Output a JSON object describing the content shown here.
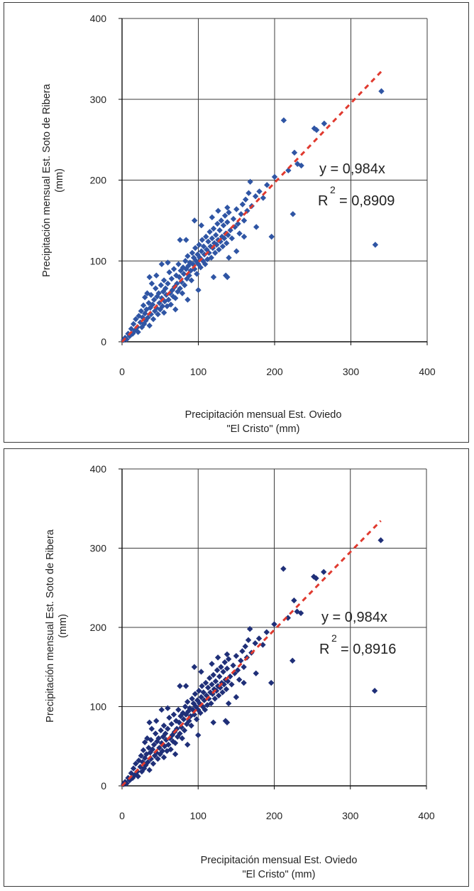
{
  "charts": [
    {
      "point_color": "#2f55a4",
      "trend_color": "#e03a2f",
      "xlabel_line1": "Precipitación mensual Est. Oviedo",
      "xlabel_line2": "\"El Cristo\" (mm)",
      "ylabel_line1": "Precipitación mensual Est. Soto de Ribera",
      "ylabel_line2": "(mm)",
      "equation": "y = 0,984x",
      "r2_label": "R",
      "r2_exp": "2",
      "r2_value": "= 0,8909",
      "xticks": [
        "0",
        "100",
        "200",
        "300",
        "400"
      ],
      "yticks": [
        "0",
        "100",
        "200",
        "300",
        "400"
      ]
    },
    {
      "point_color": "#1f2f78",
      "trend_color": "#e03a2f",
      "xlabel_line1": "Precipitación mensual Est. Oviedo",
      "xlabel_line2": "\"El Cristo\" (mm)",
      "ylabel_line1": "Precipitación mensual Est. Soto de Ribera",
      "ylabel_line2": "(mm)",
      "equation": "y = 0,984x",
      "r2_label": "R",
      "r2_exp": "2",
      "r2_value": "= 0,8916",
      "xticks": [
        "0",
        "100",
        "200",
        "300",
        "400"
      ],
      "yticks": [
        "0",
        "100",
        "200",
        "300",
        "400"
      ]
    }
  ],
  "chart_data": [
    {
      "type": "scatter",
      "xlim": [
        0,
        400
      ],
      "ylim": [
        0,
        400
      ],
      "grid": true,
      "trendline": {
        "slope": 0.984,
        "x_end": 340,
        "r2": 0.8909
      },
      "points": [
        [
          2,
          2
        ],
        [
          4,
          5
        ],
        [
          6,
          3
        ],
        [
          8,
          10
        ],
        [
          10,
          7
        ],
        [
          12,
          16
        ],
        [
          14,
          10
        ],
        [
          15,
          22
        ],
        [
          17,
          14
        ],
        [
          18,
          28
        ],
        [
          20,
          18
        ],
        [
          21,
          12
        ],
        [
          22,
          32
        ],
        [
          24,
          24
        ],
        [
          25,
          38
        ],
        [
          26,
          18
        ],
        [
          27,
          30
        ],
        [
          28,
          45
        ],
        [
          29,
          22
        ],
        [
          30,
          35
        ],
        [
          30,
          55
        ],
        [
          31,
          26
        ],
        [
          32,
          40
        ],
        [
          33,
          60
        ],
        [
          34,
          30
        ],
        [
          35,
          48
        ],
        [
          36,
          20
        ],
        [
          37,
          42
        ],
        [
          38,
          58
        ],
        [
          38,
          34
        ],
        [
          39,
          72
        ],
        [
          40,
          46
        ],
        [
          41,
          28
        ],
        [
          42,
          52
        ],
        [
          43,
          38
        ],
        [
          44,
          66
        ],
        [
          45,
          42
        ],
        [
          45,
          82
        ],
        [
          46,
          56
        ],
        [
          47,
          34
        ],
        [
          48,
          60
        ],
        [
          49,
          48
        ],
        [
          50,
          40
        ],
        [
          51,
          70
        ],
        [
          52,
          54
        ],
        [
          53,
          44
        ],
        [
          54,
          62
        ],
        [
          55,
          76
        ],
        [
          55,
          36
        ],
        [
          56,
          50
        ],
        [
          57,
          66
        ],
        [
          58,
          58
        ],
        [
          59,
          44
        ],
        [
          60,
          72
        ],
        [
          61,
          52
        ],
        [
          62,
          86
        ],
        [
          63,
          60
        ],
        [
          64,
          46
        ],
        [
          65,
          78
        ],
        [
          66,
          64
        ],
        [
          67,
          56
        ],
        [
          68,
          90
        ],
        [
          69,
          68
        ],
        [
          70,
          54
        ],
        [
          71,
          82
        ],
        [
          72,
          72
        ],
        [
          73,
          62
        ],
        [
          74,
          96
        ],
        [
          75,
          80
        ],
        [
          76,
          66
        ],
        [
          77,
          88
        ],
        [
          78,
          74
        ],
        [
          79,
          60
        ],
        [
          80,
          92
        ],
        [
          81,
          84
        ],
        [
          82,
          70
        ],
        [
          83,
          100
        ],
        [
          84,
          90
        ],
        [
          85,
          78
        ],
        [
          86,
          106
        ],
        [
          87,
          94
        ],
        [
          88,
          82
        ],
        [
          89,
          98
        ],
        [
          90,
          88
        ],
        [
          91,
          76
        ],
        [
          92,
          110
        ],
        [
          93,
          96
        ],
        [
          94,
          104
        ],
        [
          95,
          90
        ],
        [
          96,
          116
        ],
        [
          97,
          100
        ],
        [
          98,
          84
        ],
        [
          99,
          108
        ],
        [
          100,
          96
        ],
        [
          101,
          120
        ],
        [
          102,
          104
        ],
        [
          103,
          92
        ],
        [
          104,
          112
        ],
        [
          105,
          126
        ],
        [
          106,
          100
        ],
        [
          107,
          118
        ],
        [
          108,
          108
        ],
        [
          109,
          96
        ],
        [
          110,
          130
        ],
        [
          111,
          114
        ],
        [
          112,
          102
        ],
        [
          113,
          124
        ],
        [
          114,
          110
        ],
        [
          115,
          136
        ],
        [
          116,
          118
        ],
        [
          117,
          104
        ],
        [
          118,
          128
        ],
        [
          119,
          116
        ],
        [
          120,
          140
        ],
        [
          121,
          122
        ],
        [
          122,
          110
        ],
        [
          123,
          132
        ],
        [
          124,
          120
        ],
        [
          125,
          146
        ],
        [
          126,
          126
        ],
        [
          127,
          114
        ],
        [
          128,
          138
        ],
        [
          129,
          124
        ],
        [
          130,
          150
        ],
        [
          131,
          130
        ],
        [
          132,
          118
        ],
        [
          133,
          144
        ],
        [
          134,
          128
        ],
        [
          135,
          156
        ],
        [
          136,
          134
        ],
        [
          137,
          122
        ],
        [
          138,
          148
        ],
        [
          139,
          132
        ],
        [
          140,
          160
        ],
        [
          142,
          138
        ],
        [
          144,
          128
        ],
        [
          146,
          152
        ],
        [
          148,
          142
        ],
        [
          150,
          164
        ],
        [
          152,
          146
        ],
        [
          154,
          134
        ],
        [
          156,
          158
        ],
        [
          158,
          170
        ],
        [
          160,
          150
        ],
        [
          162,
          176
        ],
        [
          164,
          162
        ],
        [
          166,
          184
        ],
        [
          168,
          198
        ],
        [
          170,
          168
        ],
        [
          175,
          180
        ],
        [
          180,
          186
        ],
        [
          185,
          178
        ],
        [
          190,
          194
        ],
        [
          36,
          80
        ],
        [
          52,
          96
        ],
        [
          60,
          98
        ],
        [
          76,
          126
        ],
        [
          84,
          126
        ],
        [
          95,
          150
        ],
        [
          104,
          144
        ],
        [
          118,
          154
        ],
        [
          126,
          162
        ],
        [
          138,
          166
        ],
        [
          70,
          40
        ],
        [
          86,
          52
        ],
        [
          100,
          64
        ],
        [
          120,
          80
        ],
        [
          136,
          82
        ],
        [
          140,
          104
        ],
        [
          150,
          112
        ],
        [
          160,
          130
        ],
        [
          176,
          142
        ],
        [
          138,
          80
        ],
        [
          196,
          130
        ],
        [
          200,
          204
        ],
        [
          212,
          274
        ],
        [
          218,
          212
        ],
        [
          224,
          158
        ],
        [
          226,
          234
        ],
        [
          230,
          220
        ],
        [
          235,
          218
        ],
        [
          252,
          264
        ],
        [
          255,
          262
        ],
        [
          265,
          270
        ],
        [
          332,
          120
        ],
        [
          340,
          310
        ]
      ]
    },
    {
      "type": "scatter",
      "xlim": [
        0,
        400
      ],
      "ylim": [
        0,
        400
      ],
      "grid": true,
      "trendline": {
        "slope": 0.984,
        "x_end": 340,
        "r2": 0.8916
      },
      "points": [
        [
          2,
          2
        ],
        [
          4,
          5
        ],
        [
          6,
          3
        ],
        [
          8,
          10
        ],
        [
          10,
          7
        ],
        [
          12,
          16
        ],
        [
          14,
          10
        ],
        [
          15,
          22
        ],
        [
          17,
          14
        ],
        [
          18,
          28
        ],
        [
          20,
          18
        ],
        [
          21,
          12
        ],
        [
          22,
          32
        ],
        [
          24,
          24
        ],
        [
          25,
          38
        ],
        [
          26,
          18
        ],
        [
          27,
          30
        ],
        [
          28,
          45
        ],
        [
          29,
          22
        ],
        [
          30,
          35
        ],
        [
          30,
          55
        ],
        [
          31,
          26
        ],
        [
          32,
          40
        ],
        [
          33,
          60
        ],
        [
          34,
          30
        ],
        [
          35,
          48
        ],
        [
          36,
          20
        ],
        [
          37,
          42
        ],
        [
          38,
          58
        ],
        [
          38,
          34
        ],
        [
          39,
          72
        ],
        [
          40,
          46
        ],
        [
          41,
          28
        ],
        [
          42,
          52
        ],
        [
          43,
          38
        ],
        [
          44,
          66
        ],
        [
          45,
          42
        ],
        [
          45,
          82
        ],
        [
          46,
          56
        ],
        [
          47,
          34
        ],
        [
          48,
          60
        ],
        [
          49,
          48
        ],
        [
          50,
          40
        ],
        [
          51,
          70
        ],
        [
          52,
          54
        ],
        [
          53,
          44
        ],
        [
          54,
          62
        ],
        [
          55,
          76
        ],
        [
          55,
          36
        ],
        [
          56,
          50
        ],
        [
          57,
          66
        ],
        [
          58,
          58
        ],
        [
          59,
          44
        ],
        [
          60,
          72
        ],
        [
          61,
          52
        ],
        [
          62,
          86
        ],
        [
          63,
          60
        ],
        [
          64,
          46
        ],
        [
          65,
          78
        ],
        [
          66,
          64
        ],
        [
          67,
          56
        ],
        [
          68,
          90
        ],
        [
          69,
          68
        ],
        [
          70,
          54
        ],
        [
          71,
          82
        ],
        [
          72,
          72
        ],
        [
          73,
          62
        ],
        [
          74,
          96
        ],
        [
          75,
          80
        ],
        [
          76,
          66
        ],
        [
          77,
          88
        ],
        [
          78,
          74
        ],
        [
          79,
          60
        ],
        [
          80,
          92
        ],
        [
          81,
          84
        ],
        [
          82,
          70
        ],
        [
          83,
          100
        ],
        [
          84,
          90
        ],
        [
          85,
          78
        ],
        [
          86,
          106
        ],
        [
          87,
          94
        ],
        [
          88,
          82
        ],
        [
          89,
          98
        ],
        [
          90,
          88
        ],
        [
          91,
          76
        ],
        [
          92,
          110
        ],
        [
          93,
          96
        ],
        [
          94,
          104
        ],
        [
          95,
          90
        ],
        [
          96,
          116
        ],
        [
          97,
          100
        ],
        [
          98,
          84
        ],
        [
          99,
          108
        ],
        [
          100,
          96
        ],
        [
          101,
          120
        ],
        [
          102,
          104
        ],
        [
          103,
          92
        ],
        [
          104,
          112
        ],
        [
          105,
          126
        ],
        [
          106,
          100
        ],
        [
          107,
          118
        ],
        [
          108,
          108
        ],
        [
          109,
          96
        ],
        [
          110,
          130
        ],
        [
          111,
          114
        ],
        [
          112,
          102
        ],
        [
          113,
          124
        ],
        [
          114,
          110
        ],
        [
          115,
          136
        ],
        [
          116,
          118
        ],
        [
          117,
          104
        ],
        [
          118,
          128
        ],
        [
          119,
          116
        ],
        [
          120,
          140
        ],
        [
          121,
          122
        ],
        [
          122,
          110
        ],
        [
          123,
          132
        ],
        [
          124,
          120
        ],
        [
          125,
          146
        ],
        [
          126,
          126
        ],
        [
          127,
          114
        ],
        [
          128,
          138
        ],
        [
          129,
          124
        ],
        [
          130,
          150
        ],
        [
          131,
          130
        ],
        [
          132,
          118
        ],
        [
          133,
          144
        ],
        [
          134,
          128
        ],
        [
          135,
          156
        ],
        [
          136,
          134
        ],
        [
          137,
          122
        ],
        [
          138,
          148
        ],
        [
          139,
          132
        ],
        [
          140,
          160
        ],
        [
          142,
          138
        ],
        [
          144,
          128
        ],
        [
          146,
          152
        ],
        [
          148,
          142
        ],
        [
          150,
          164
        ],
        [
          152,
          146
        ],
        [
          154,
          134
        ],
        [
          156,
          158
        ],
        [
          158,
          170
        ],
        [
          160,
          150
        ],
        [
          162,
          176
        ],
        [
          164,
          162
        ],
        [
          166,
          184
        ],
        [
          168,
          198
        ],
        [
          170,
          168
        ],
        [
          175,
          180
        ],
        [
          180,
          186
        ],
        [
          185,
          178
        ],
        [
          190,
          194
        ],
        [
          36,
          80
        ],
        [
          52,
          96
        ],
        [
          60,
          98
        ],
        [
          76,
          126
        ],
        [
          84,
          126
        ],
        [
          95,
          150
        ],
        [
          104,
          144
        ],
        [
          118,
          154
        ],
        [
          126,
          162
        ],
        [
          138,
          166
        ],
        [
          70,
          40
        ],
        [
          86,
          52
        ],
        [
          100,
          64
        ],
        [
          120,
          80
        ],
        [
          136,
          82
        ],
        [
          140,
          104
        ],
        [
          150,
          112
        ],
        [
          160,
          130
        ],
        [
          176,
          142
        ],
        [
          138,
          80
        ],
        [
          196,
          130
        ],
        [
          200,
          204
        ],
        [
          212,
          274
        ],
        [
          218,
          212
        ],
        [
          224,
          158
        ],
        [
          226,
          234
        ],
        [
          230,
          220
        ],
        [
          235,
          218
        ],
        [
          252,
          264
        ],
        [
          255,
          262
        ],
        [
          265,
          270
        ],
        [
          332,
          120
        ],
        [
          340,
          310
        ]
      ]
    }
  ]
}
